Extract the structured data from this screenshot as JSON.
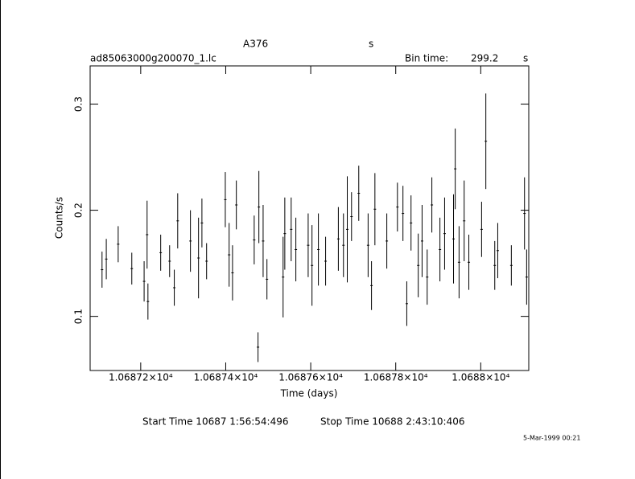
{
  "chart_data": {
    "type": "errorbar",
    "title": "A376",
    "title_unit": "s",
    "filename": "ad85063000g200070_1.lc",
    "bin_label": "Bin time:",
    "bin_value": "299.2",
    "bin_unit": "s",
    "xlabel": "Time (days)",
    "ylabel": "Counts/s",
    "start_time": "Start Time 10687  1:56:54:496",
    "stop_time": "Stop Time 10688  2:43:10:406",
    "date": "5-Mar-1999 00:21",
    "xlim": [
      10687.081,
      10688.113
    ],
    "ylim": [
      0.049,
      0.336
    ],
    "xticks": [
      {
        "value": 10687.2,
        "label": "1.06872×10⁴"
      },
      {
        "value": 10687.4,
        "label": "1.06874×10⁴"
      },
      {
        "value": 10687.6,
        "label": "1.06876×10⁴"
      },
      {
        "value": 10687.8,
        "label": "1.06878×10⁴"
      },
      {
        "value": 10688.0,
        "label": "1.0688×10⁴"
      }
    ],
    "yticks": [
      0.1,
      0.2,
      0.3
    ],
    "color": "#000000",
    "x": [
      10687.109,
      10687.119,
      10687.147,
      10687.179,
      10687.208,
      10687.215,
      10687.217,
      10687.247,
      10687.268,
      10687.279,
      10687.287,
      10687.317,
      10687.336,
      10687.344,
      10687.355,
      10687.399,
      10687.408,
      10687.416,
      10687.425,
      10687.467,
      10687.476,
      10687.478,
      10687.488,
      10687.497,
      10687.535,
      10687.539,
      10687.554,
      10687.565,
      10687.594,
      10687.603,
      10687.618,
      10687.635,
      10687.665,
      10687.677,
      10687.686,
      10687.696,
      10687.713,
      10687.735,
      10687.743,
      10687.751,
      10687.779,
      10687.804,
      10687.817,
      10687.826,
      10687.836,
      10687.853,
      10687.862,
      10687.874,
      10687.885,
      10687.904,
      10687.915,
      10687.936,
      10687.94,
      10687.949,
      10687.961,
      10687.972,
      10688.002,
      10688.012,
      10688.033,
      10688.04,
      10688.072,
      10688.103,
      10688.108
    ],
    "values": [
      0.144,
      0.154,
      0.168,
      0.145,
      0.133,
      0.177,
      0.114,
      0.16,
      0.152,
      0.127,
      0.19,
      0.171,
      0.155,
      0.188,
      0.152,
      0.21,
      0.158,
      0.141,
      0.205,
      0.172,
      0.071,
      0.203,
      0.171,
      0.135,
      0.137,
      0.178,
      0.182,
      0.163,
      0.167,
      0.148,
      0.163,
      0.152,
      0.173,
      0.167,
      0.182,
      0.194,
      0.216,
      0.167,
      0.129,
      0.201,
      0.171,
      0.203,
      0.197,
      0.112,
      0.188,
      0.148,
      0.171,
      0.137,
      0.205,
      0.163,
      0.178,
      0.173,
      0.239,
      0.151,
      0.19,
      0.151,
      0.182,
      0.265,
      0.148,
      0.162,
      0.148,
      0.197,
      0.137
    ],
    "errors": [
      0.017,
      0.019,
      0.017,
      0.015,
      0.019,
      0.032,
      0.017,
      0.017,
      0.015,
      0.017,
      0.026,
      0.029,
      0.038,
      0.023,
      0.017,
      0.026,
      0.03,
      0.026,
      0.023,
      0.023,
      0.014,
      0.034,
      0.034,
      0.019,
      0.038,
      0.034,
      0.03,
      0.03,
      0.03,
      0.038,
      0.034,
      0.023,
      0.03,
      0.03,
      0.05,
      0.023,
      0.026,
      0.03,
      0.023,
      0.034,
      0.026,
      0.023,
      0.026,
      0.021,
      0.026,
      0.03,
      0.034,
      0.026,
      0.026,
      0.03,
      0.034,
      0.042,
      0.038,
      0.034,
      0.038,
      0.026,
      0.026,
      0.045,
      0.023,
      0.026,
      0.019,
      0.034,
      0.026
    ]
  }
}
